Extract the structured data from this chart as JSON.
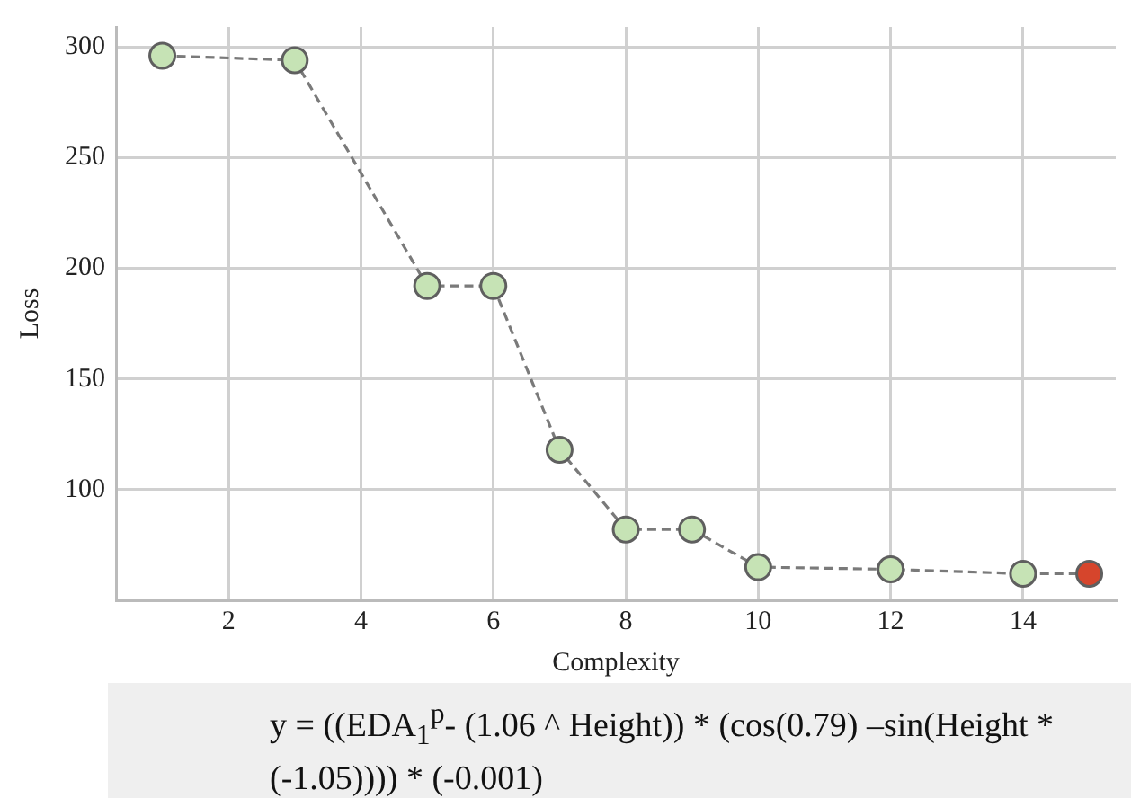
{
  "chart_data": {
    "type": "line",
    "xlabel": "Complexity",
    "ylabel": "Loss",
    "x": [
      1,
      3,
      5,
      6,
      7,
      8,
      9,
      10,
      12,
      14,
      15
    ],
    "series": [
      {
        "color": "#7a7a7a",
        "colors": [
          "#c6e3b5",
          "#c6e3b5",
          "#c6e3b5",
          "#c6e3b5",
          "#c6e3b5",
          "#c6e3b5",
          "#c6e3b5",
          "#c6e3b5",
          "#c6e3b5",
          "#c6e3b5",
          "#d6452c"
        ],
        "values": [
          296,
          294,
          192,
          192,
          118,
          82,
          82,
          65,
          64,
          62,
          62
        ]
      }
    ],
    "xlim": [
      0.3,
      15.4
    ],
    "xticks": [
      2,
      4,
      6,
      8,
      10,
      12,
      14
    ],
    "ylim": [
      50,
      309
    ],
    "yticks": [
      100,
      150,
      200,
      250,
      300
    ],
    "grid": true,
    "legend": false,
    "marker": "circle",
    "line_style": "dashed",
    "annotations": [
      "y = ((EDA$_{1}$$^{p}$- (1.06 ^ Height)) * (cos(0.79) –sin(Height * (-1.05)))) * (-0.001)"
    ]
  }
}
